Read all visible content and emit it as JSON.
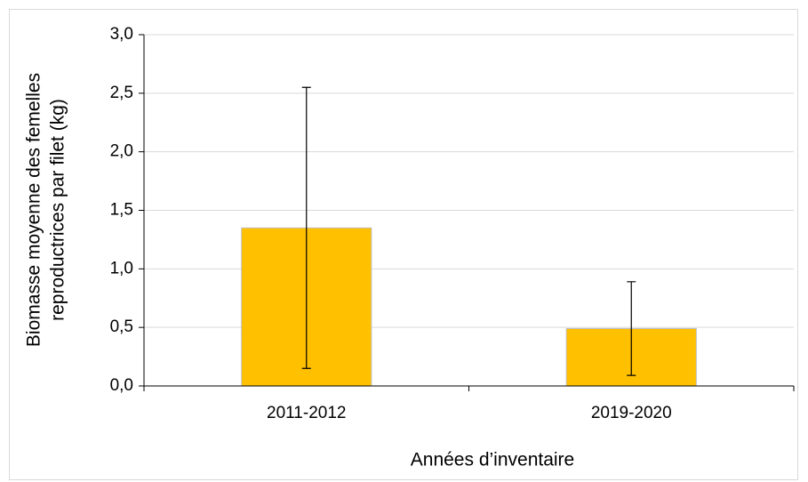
{
  "chart_data": {
    "type": "bar",
    "categories": [
      "2011-2012",
      "2019-2020"
    ],
    "values": [
      1.35,
      0.49
    ],
    "errors": [
      1.2,
      0.4
    ],
    "color": "#ffc000",
    "ylim": [
      0,
      3
    ],
    "yticks": [
      {
        "value": 0,
        "label": "0,0"
      },
      {
        "value": 0.5,
        "label": "0,5"
      },
      {
        "value": 1,
        "label": "1,0"
      },
      {
        "value": 1.5,
        "label": "1,5"
      },
      {
        "value": 2,
        "label": "2,0"
      },
      {
        "value": 2.5,
        "label": "2,5"
      },
      {
        "value": 3,
        "label": "3,0"
      }
    ],
    "grid": true,
    "xlabel": "Années d’inventaire",
    "ylabel": [
      "Biomasse moyenne des femelles",
      "reproductrices par filet (kg)"
    ]
  }
}
